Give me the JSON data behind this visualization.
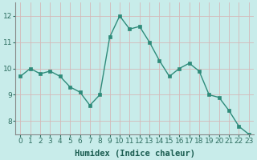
{
  "x": [
    0,
    1,
    2,
    3,
    4,
    5,
    6,
    7,
    8,
    9,
    10,
    11,
    12,
    13,
    14,
    15,
    16,
    17,
    18,
    19,
    20,
    21,
    22,
    23
  ],
  "y": [
    9.7,
    10.0,
    9.8,
    9.9,
    9.7,
    9.3,
    9.1,
    8.6,
    9.0,
    11.2,
    12.0,
    11.5,
    11.6,
    11.0,
    10.3,
    9.7,
    10.0,
    10.2,
    9.9,
    9.0,
    8.9,
    8.4,
    7.8,
    7.5
  ],
  "line_color": "#2e8b7a",
  "marker_color": "#2e8b7a",
  "bg_color": "#c8ecea",
  "grid_color": "#d4b8b8",
  "xlabel": "Humidex (Indice chaleur)",
  "xlim": [
    -0.5,
    23.5
  ],
  "ylim": [
    7.5,
    12.5
  ],
  "yticks": [
    8,
    9,
    10,
    11,
    12
  ],
  "xticks": [
    0,
    1,
    2,
    3,
    4,
    5,
    6,
    7,
    8,
    9,
    10,
    11,
    12,
    13,
    14,
    15,
    16,
    17,
    18,
    19,
    20,
    21,
    22,
    23
  ],
  "xlabel_fontsize": 7.5,
  "tick_fontsize": 6.5,
  "marker_size": 2.5,
  "line_width": 1.0,
  "tick_color": "#2e6e60",
  "label_color": "#1a5c50"
}
